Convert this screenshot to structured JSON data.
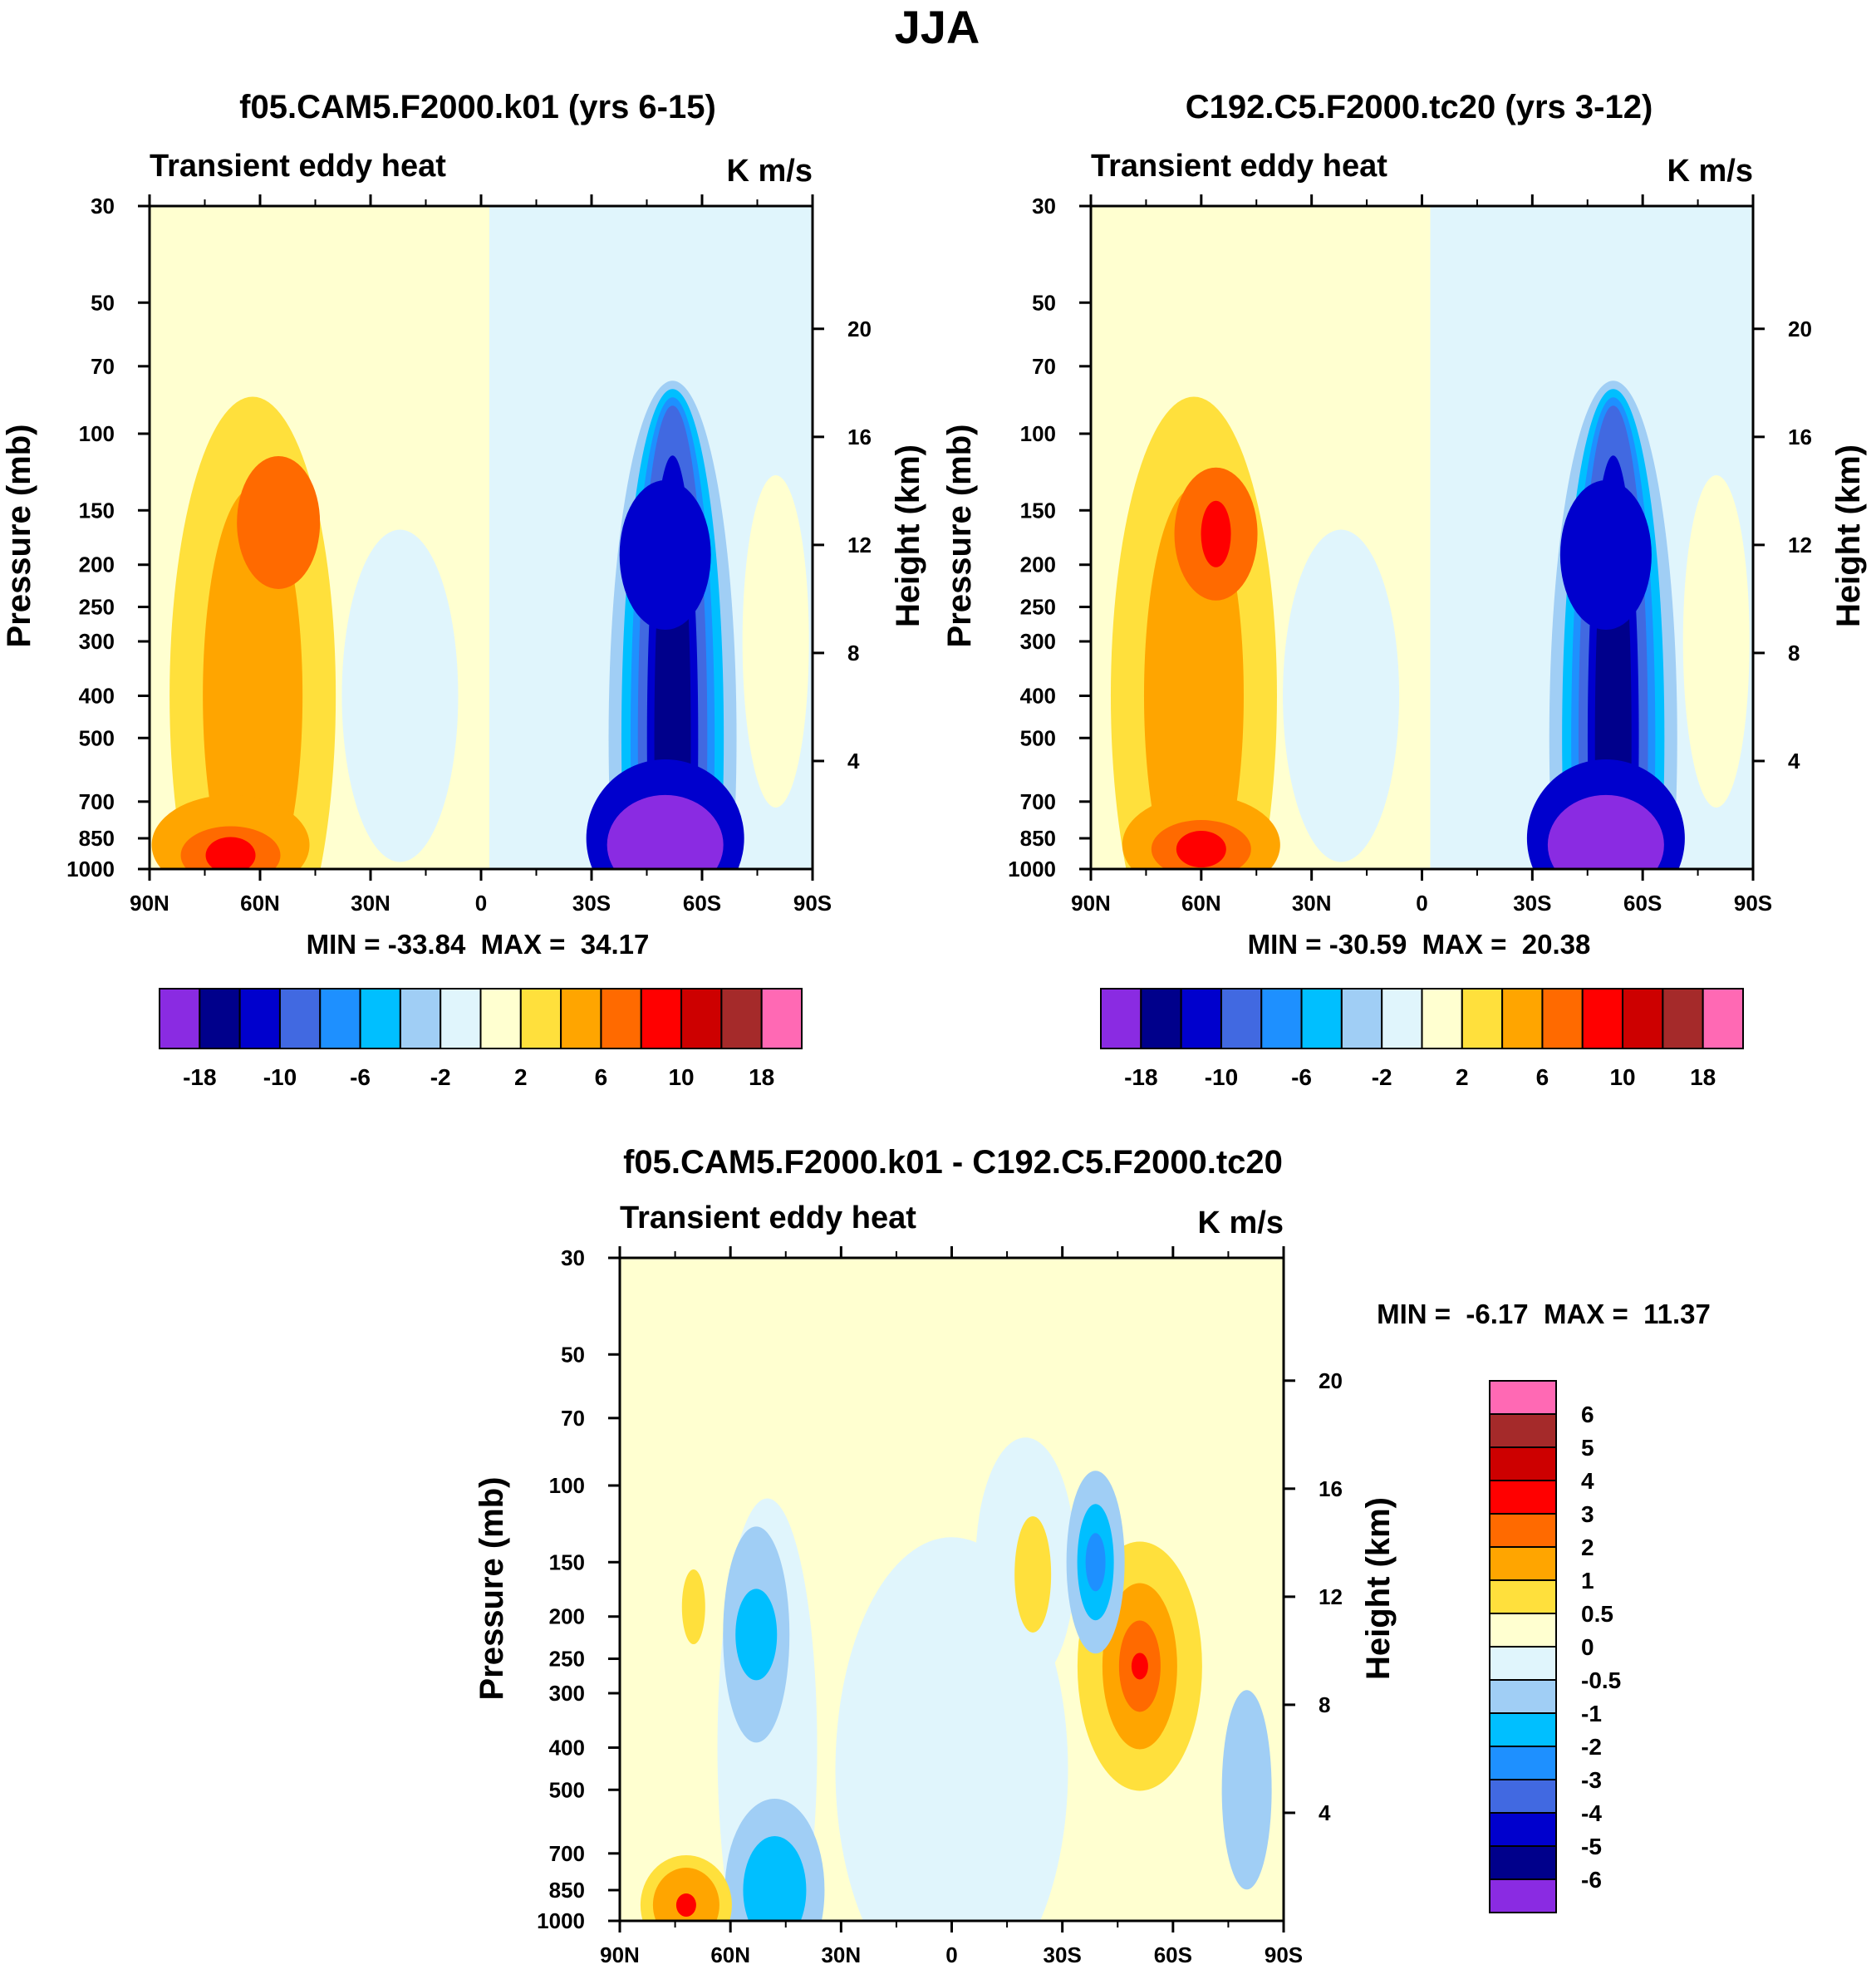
{
  "figure": {
    "title": "JJA",
    "units": "K m/s",
    "variable": "Transient eddy heat",
    "y_left_label": "Pressure (mb)",
    "y_right_label": "Height (km)"
  },
  "chart_data": [
    {
      "type": "heatmap",
      "title": "f05.CAM5.F2000.k01 (yrs 6-15)",
      "subtitle_left": "Transient eddy heat",
      "subtitle_right": "K m/s",
      "xlabel": "",
      "ylabel": "Pressure (mb)",
      "ylabel_right": "Height (km)",
      "x_ticks": [
        "90N",
        "60N",
        "30N",
        "0",
        "30S",
        "60S",
        "90S"
      ],
      "y_ticks": [
        30,
        50,
        70,
        100,
        150,
        200,
        250,
        300,
        400,
        500,
        700,
        850,
        1000
      ],
      "y_right_ticks": [
        4,
        8,
        12,
        16,
        20
      ],
      "ylim": [
        1000,
        30
      ],
      "xlim": [
        90,
        -90
      ],
      "stats": "MIN = -33.84  MAX =  34.17",
      "min": -33.84,
      "max": 34.17,
      "colorbar_labels": [
        "-18",
        "-10",
        "-6",
        "-2",
        "2",
        "6",
        "10",
        "18"
      ],
      "features": [
        {
          "lat": 55,
          "p": 160,
          "value": 8,
          "sign": "positive",
          "label": "upper-level NH maximum"
        },
        {
          "lat": 68,
          "p": 930,
          "value": 14,
          "sign": "positive",
          "label": "near-surface NH maximum"
        },
        {
          "lat": -50,
          "p": 190,
          "value": -14,
          "sign": "negative",
          "label": "upper-level SH minimum"
        },
        {
          "lat": -50,
          "p": 850,
          "value": -22,
          "sign": "negative",
          "label": "near-surface SH minimum"
        }
      ]
    },
    {
      "type": "heatmap",
      "title": "C192.C5.F2000.tc20 (yrs 3-12)",
      "subtitle_left": "Transient eddy heat",
      "subtitle_right": "K m/s",
      "xlabel": "",
      "ylabel": "Pressure (mb)",
      "ylabel_right": "Height (km)",
      "x_ticks": [
        "90N",
        "60N",
        "30N",
        "0",
        "30S",
        "60S",
        "90S"
      ],
      "y_ticks": [
        30,
        50,
        70,
        100,
        150,
        200,
        250,
        300,
        400,
        500,
        700,
        850,
        1000
      ],
      "y_right_ticks": [
        4,
        8,
        12,
        16,
        20
      ],
      "ylim": [
        1000,
        30
      ],
      "xlim": [
        90,
        -90
      ],
      "stats": "MIN = -30.59  MAX =  20.38",
      "min": -30.59,
      "max": 20.38,
      "colorbar_labels": [
        "-18",
        "-10",
        "-6",
        "-2",
        "2",
        "6",
        "10",
        "18"
      ],
      "features": [
        {
          "lat": 56,
          "p": 170,
          "value": 10,
          "sign": "positive",
          "label": "upper-level NH maximum"
        },
        {
          "lat": 60,
          "p": 900,
          "value": 12,
          "sign": "positive",
          "label": "near-surface NH maximum"
        },
        {
          "lat": -50,
          "p": 190,
          "value": -13,
          "sign": "negative",
          "label": "upper-level SH minimum"
        },
        {
          "lat": -50,
          "p": 850,
          "value": -22,
          "sign": "negative",
          "label": "near-surface SH minimum"
        }
      ]
    },
    {
      "type": "heatmap",
      "title": "f05.CAM5.F2000.k01 - C192.C5.F2000.tc20",
      "subtitle_left": "Transient eddy heat",
      "subtitle_right": "K m/s",
      "xlabel": "",
      "ylabel": "Pressure (mb)",
      "ylabel_right": "Height (km)",
      "x_ticks": [
        "90N",
        "60N",
        "30N",
        "0",
        "30S",
        "60S",
        "90S"
      ],
      "y_ticks": [
        30,
        50,
        70,
        100,
        150,
        200,
        250,
        300,
        400,
        500,
        700,
        850,
        1000
      ],
      "y_right_ticks": [
        4,
        8,
        12,
        16,
        20
      ],
      "ylim": [
        1000,
        30
      ],
      "xlim": [
        90,
        -90
      ],
      "stats": "MIN =  -6.17  MAX =  11.37",
      "min": -6.17,
      "max": 11.37,
      "colorbar_labels": [
        "6",
        "5",
        "4",
        "3",
        "2",
        "1",
        "0.5",
        "0",
        "-0.5",
        "-1",
        "-2",
        "-3",
        "-4",
        "-5",
        "-6"
      ],
      "features": [
        {
          "lat": -51,
          "p": 260,
          "value": 3.5,
          "sign": "positive",
          "label": "SH upper-level positive difference"
        },
        {
          "lat": 72,
          "p": 920,
          "value": 3,
          "sign": "positive",
          "label": "NH near-surface positive difference"
        },
        {
          "lat": -39,
          "p": 150,
          "value": -3,
          "sign": "negative",
          "label": "SH upper-level negative difference"
        },
        {
          "lat": 53,
          "p": 220,
          "value": -1.5,
          "sign": "negative",
          "label": "NH upper-level negative difference"
        },
        {
          "lat": 48,
          "p": 850,
          "value": -2,
          "sign": "negative",
          "label": "NH low-level negative difference"
        }
      ]
    }
  ],
  "colors": {
    "cmap": [
      "#8a2be2",
      "#00008b",
      "#0000cd",
      "#4169e1",
      "#1e90ff",
      "#00bfff",
      "#a0cef5",
      "#e0f5fc",
      "#ffffd0",
      "#ffe03c",
      "#ffa500",
      "#ff6a00",
      "#ff0000",
      "#cd0000",
      "#a52a2a",
      "#ff69b4"
    ]
  }
}
